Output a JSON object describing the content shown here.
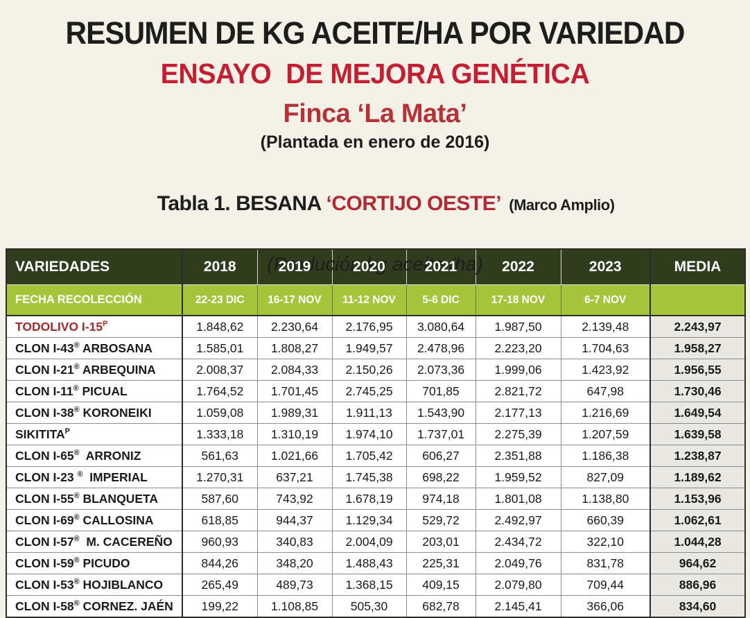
{
  "titles": {
    "main": "RESUMEN DE KG ACEITE/HA POR VARIEDAD",
    "subtitle": "ENSAYO  DE MEJORA GENÉTICA",
    "farm": "Finca ‘La Mata’",
    "planted": "(Plantada en enero de 2016)",
    "units": "(Produción kg aceite /ha)"
  },
  "caption": {
    "prefix": "Tabla 1. BESANA ",
    "highlight": "‘CORTIJO OESTE’",
    "suffix": "  (Marco Amplio)"
  },
  "colors": {
    "page_bg": "#f3f1e8",
    "title_black": "#1d1d1b",
    "subtitle_red": "#c22032",
    "farm_red": "#b53237",
    "caption_red": "#b12a31",
    "todolivo_red": "#a22b2d",
    "header_dark_green": "#303c1d",
    "header_light_green": "#a7c43d",
    "media_cell_bg": "#e9e8e3"
  },
  "table": {
    "header1": [
      "VARIEDADES",
      "2018",
      "2019",
      "2020",
      "2021",
      "2022",
      "2023",
      "MEDIA"
    ],
    "header2": [
      "FECHA RECOLECCIÓN",
      "22-23 DIC",
      "16-17 NOV",
      "11-12 NOV",
      "5-6 DIC",
      "17-18 NOV",
      "6-7 NOV",
      ""
    ],
    "rows": [
      {
        "pre": "TODOLIVO I-15",
        "sym": "P",
        "post": "",
        "red": true,
        "values": [
          "1.848,62",
          "2.230,64",
          "2.176,95",
          "3.080,64",
          "1.987,50",
          "2.139,48"
        ],
        "media": "2.243,97"
      },
      {
        "pre": "CLON I-43",
        "sym": "®",
        "post": " ARBOSANA",
        "red": false,
        "values": [
          "1.585,01",
          "1.808,27",
          "1.949,57",
          "2.478,96",
          "2.223,20",
          "1.704,63"
        ],
        "media": "1.958,27"
      },
      {
        "pre": "CLON I-21",
        "sym": "®",
        "post": " ARBEQUINA",
        "red": false,
        "values": [
          "2.008,37",
          "2.084,33",
          "2.150,26",
          "2.073,36",
          "1.999,06",
          "1.423,92"
        ],
        "media": "1.956,55"
      },
      {
        "pre": "CLON I-11",
        "sym": "®",
        "post": " PICUAL",
        "red": false,
        "values": [
          "1.764,52",
          "1.701,45",
          "2.745,25",
          "701,85",
          "2.821,72",
          "647,98"
        ],
        "media": "1.730,46"
      },
      {
        "pre": "CLON I-38",
        "sym": "®",
        "post": " KORONEIKI",
        "red": false,
        "values": [
          "1.059,08",
          "1.989,31",
          "1.911,13",
          "1.543,90",
          "2.177,13",
          "1.216,69"
        ],
        "media": "1.649,54"
      },
      {
        "pre": "SIKITITA",
        "sym": "P",
        "post": "",
        "red": false,
        "values": [
          "1.333,18",
          "1.310,19",
          "1.974,10",
          "1.737,01",
          "2.275,39",
          "1.207,59"
        ],
        "media": "1.639,58"
      },
      {
        "pre": "CLON I-65",
        "sym": "®",
        "post": "  ARRONIZ",
        "red": false,
        "values": [
          "561,63",
          "1.021,66",
          "1.705,42",
          "606,27",
          "2.351,88",
          "1.186,38"
        ],
        "media": "1.238,87"
      },
      {
        "pre": "CLON I-23 ",
        "sym": "®",
        "post": "  IMPERIAL",
        "red": false,
        "values": [
          "1.270,31",
          "637,21",
          "1.745,38",
          "698,22",
          "1.959,52",
          "827,09"
        ],
        "media": "1.189,62"
      },
      {
        "pre": "CLON I-55",
        "sym": "®",
        "post": " BLANQUETA",
        "red": false,
        "values": [
          "587,60",
          "743,92",
          "1.678,19",
          "974,18",
          "1.801,08",
          "1.138,80"
        ],
        "media": "1.153,96"
      },
      {
        "pre": "CLON I-69",
        "sym": "®",
        "post": " CALLOSINA",
        "red": false,
        "values": [
          "618,85",
          "944,37",
          "1.129,34",
          "529,72",
          "2.492,97",
          "660,39"
        ],
        "media": "1.062,61"
      },
      {
        "pre": "CLON I-57",
        "sym": "®",
        "post": "  M. CACEREÑO",
        "red": false,
        "values": [
          "960,93",
          "340,83",
          "2.004,09",
          "203,01",
          "2.434,72",
          "322,10"
        ],
        "media": "1.044,28"
      },
      {
        "pre": "CLON I-59",
        "sym": "®",
        "post": " PICUDO",
        "red": false,
        "values": [
          "844,26",
          "348,20",
          "1.488,43",
          "225,31",
          "2.049,76",
          "831,78"
        ],
        "media": "964,62"
      },
      {
        "pre": "CLON I-53",
        "sym": "®",
        "post": " HOJIBLANCO",
        "red": false,
        "values": [
          "265,49",
          "489,73",
          "1.368,15",
          "409,15",
          "2.079,80",
          "709,44"
        ],
        "media": "886,96"
      },
      {
        "pre": "CLON I-58",
        "sym": "®",
        "post": " CORNEZ. JAÉN",
        "red": false,
        "values": [
          "199,22",
          "1.108,85",
          "505,30",
          "682,78",
          "2.145,41",
          "366,06"
        ],
        "media": "834,60"
      }
    ]
  }
}
